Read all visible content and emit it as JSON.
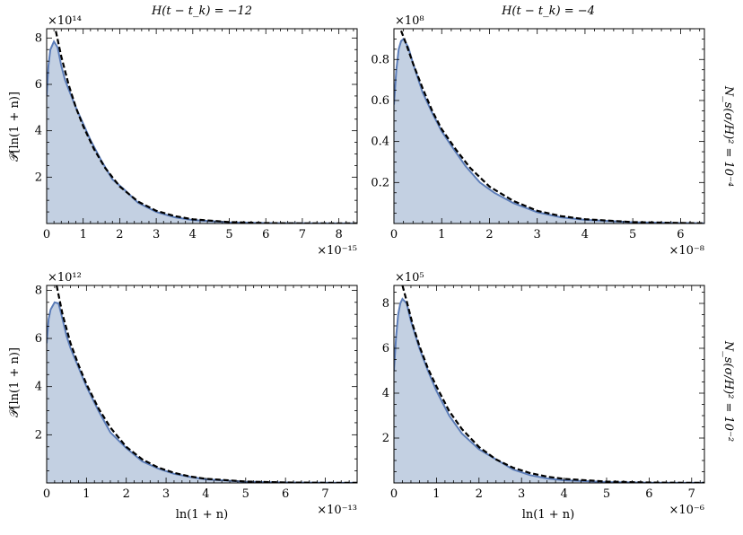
{
  "col_titles": [
    "H(t − t_k) = −12",
    "H(t − t_k) = −4"
  ],
  "row_labels": [
    "N_s(σ/H)² = 10⁻⁴",
    "N_s(σ/H)² = 10⁻²"
  ],
  "ylabel": "𝒫[ln(1 + n)]",
  "xlabel": "ln(1 + n)",
  "colors": {
    "fill": "#c3d0e2",
    "curve": "#5b7cb8",
    "fit": "#000000"
  },
  "chart_data": [
    {
      "type": "area",
      "panel": "top-left",
      "ymult": "×10¹⁴",
      "xmult": "×10⁻¹⁵",
      "xlim": [
        0,
        8.5
      ],
      "ylim": [
        0,
        8.4
      ],
      "xticks": [
        0,
        1,
        2,
        3,
        4,
        5,
        6,
        7,
        8
      ],
      "yticks": [
        2,
        4,
        6,
        8
      ],
      "ytick_labels": [
        "2",
        "4",
        "6",
        "8"
      ],
      "x": [
        0,
        0.05,
        0.1,
        0.2,
        0.3,
        0.4,
        0.5,
        0.6,
        0.8,
        1.0,
        1.2,
        1.5,
        1.8,
        2.1,
        2.5,
        3,
        3.5,
        4,
        5,
        6,
        7,
        8.5
      ],
      "y": [
        5.5,
        6.8,
        7.5,
        7.85,
        7.6,
        6.8,
        6.2,
        5.8,
        5.0,
        4.3,
        3.6,
        2.7,
        1.9,
        1.5,
        0.9,
        0.5,
        0.27,
        0.15,
        0.05,
        0.02,
        0.01,
        0.003
      ],
      "fit_x": [
        0.25,
        0.4,
        0.6,
        0.8,
        1.0,
        1.3,
        1.6,
        2.0,
        2.5,
        3,
        3.5,
        4,
        5,
        6,
        7,
        8.5
      ],
      "fit_y": [
        8.3,
        7.2,
        6.0,
        5.0,
        4.2,
        3.2,
        2.4,
        1.6,
        0.95,
        0.55,
        0.32,
        0.18,
        0.06,
        0.02,
        0.008,
        0.002
      ]
    },
    {
      "type": "area",
      "panel": "top-right",
      "ymult": "×10⁸",
      "xmult": "×10⁻⁸",
      "xlim": [
        0,
        6.5
      ],
      "ylim": [
        0,
        0.95
      ],
      "xticks": [
        0,
        1,
        2,
        3,
        4,
        5,
        6
      ],
      "yticks": [
        0.2,
        0.4,
        0.6,
        0.8
      ],
      "ytick_labels": [
        "0.2",
        "0.4",
        "0.6",
        "0.8"
      ],
      "x": [
        0,
        0.05,
        0.1,
        0.15,
        0.2,
        0.3,
        0.4,
        0.6,
        0.8,
        1.0,
        1.2,
        1.5,
        1.8,
        2.1,
        2.5,
        3,
        3.5,
        4,
        5,
        6,
        6.5
      ],
      "y": [
        0.58,
        0.75,
        0.85,
        0.89,
        0.9,
        0.86,
        0.78,
        0.64,
        0.54,
        0.45,
        0.38,
        0.28,
        0.2,
        0.15,
        0.1,
        0.055,
        0.03,
        0.018,
        0.006,
        0.002,
        0.001
      ],
      "fit_x": [
        0.15,
        0.25,
        0.4,
        0.6,
        0.8,
        1.0,
        1.3,
        1.6,
        2.0,
        2.5,
        3,
        3.5,
        4,
        5,
        6,
        6.5
      ],
      "fit_y": [
        0.94,
        0.88,
        0.78,
        0.66,
        0.55,
        0.46,
        0.36,
        0.27,
        0.18,
        0.11,
        0.062,
        0.036,
        0.021,
        0.007,
        0.0025,
        0.0015
      ]
    },
    {
      "type": "area",
      "panel": "bottom-left",
      "ymult": "×10¹²",
      "xmult": "×10⁻¹³",
      "xlim": [
        0,
        7.8
      ],
      "ylim": [
        0,
        8.2
      ],
      "xticks": [
        0,
        1,
        2,
        3,
        4,
        5,
        6,
        7
      ],
      "yticks": [
        2,
        4,
        6,
        8
      ],
      "ytick_labels": [
        "2",
        "4",
        "6",
        "8"
      ],
      "x": [
        0,
        0.05,
        0.1,
        0.2,
        0.3,
        0.4,
        0.5,
        0.6,
        0.8,
        1.0,
        1.3,
        1.6,
        2.0,
        2.4,
        2.8,
        3.2,
        3.6,
        4,
        5,
        6,
        7,
        7.8
      ],
      "y": [
        5.8,
        6.8,
        7.2,
        7.5,
        7.45,
        6.8,
        6.1,
        5.6,
        4.8,
        4.0,
        3.0,
        2.1,
        1.45,
        0.9,
        0.6,
        0.38,
        0.25,
        0.15,
        0.05,
        0.02,
        0.006,
        0.003
      ],
      "fit_x": [
        0.25,
        0.4,
        0.6,
        0.8,
        1.0,
        1.3,
        1.6,
        2.0,
        2.4,
        2.8,
        3.2,
        3.6,
        4,
        5,
        6,
        7,
        7.8
      ],
      "fit_y": [
        8.2,
        7.0,
        5.8,
        4.9,
        4.1,
        3.1,
        2.3,
        1.5,
        0.98,
        0.64,
        0.42,
        0.27,
        0.17,
        0.06,
        0.02,
        0.007,
        0.003
      ]
    },
    {
      "type": "area",
      "panel": "bottom-right",
      "ymult": "×10⁵",
      "xmult": "×10⁻⁶",
      "xlim": [
        0,
        7.3
      ],
      "ylim": [
        0,
        8.8
      ],
      "xticks": [
        0,
        1,
        2,
        3,
        4,
        5,
        6,
        7
      ],
      "yticks": [
        2,
        4,
        6,
        8
      ],
      "ytick_labels": [
        "2",
        "4",
        "6",
        "8"
      ],
      "x": [
        0,
        0.05,
        0.1,
        0.15,
        0.2,
        0.3,
        0.4,
        0.6,
        0.8,
        1.0,
        1.3,
        1.6,
        2.0,
        2.4,
        2.8,
        3.2,
        3.6,
        4,
        5,
        6,
        7,
        7.3
      ],
      "y": [
        5.0,
        6.5,
        7.5,
        8.0,
        8.2,
        8.0,
        7.2,
        6.0,
        5.0,
        4.1,
        3.0,
        2.2,
        1.5,
        1.05,
        0.6,
        0.35,
        0.2,
        0.12,
        0.04,
        0.012,
        0.004,
        0.003
      ],
      "fit_x": [
        0.2,
        0.3,
        0.45,
        0.6,
        0.8,
        1.0,
        1.3,
        1.6,
        2.0,
        2.4,
        2.8,
        3.2,
        3.6,
        4,
        5,
        6,
        7,
        7.3
      ],
      "fit_y": [
        8.8,
        8.1,
        7.0,
        6.1,
        5.1,
        4.3,
        3.2,
        2.4,
        1.6,
        1.05,
        0.68,
        0.44,
        0.28,
        0.18,
        0.06,
        0.02,
        0.006,
        0.004
      ]
    }
  ]
}
